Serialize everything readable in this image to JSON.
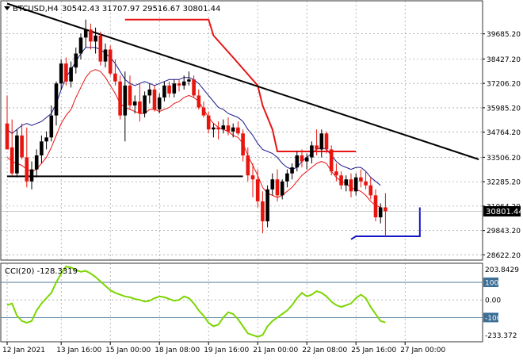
{
  "header": {
    "symbol": "BTCUSD,H4",
    "ohlc": "30542.43 31707.97 29516.67 30801.44"
  },
  "indicator": {
    "label": "CCI(20) -128.3319",
    "scale_top": "203.8429",
    "scale_bottom": "-233.372"
  },
  "price_box": {
    "value": "30801.44",
    "level": 30801.44
  },
  "colors": {
    "bull": "#000000",
    "bear": "#e8140e",
    "upper_band": "#1a1a8c",
    "lower_band": "#e81414",
    "step_red": "#e81414",
    "step_blue": "#1414c8",
    "trendline": "#000000",
    "cci": "#7cd600",
    "grid": "#888888",
    "level_line": "#3c6e96"
  },
  "chart_data": [
    {
      "type": "candlestick",
      "title": "BTCUSD,H4",
      "y_ticks": [
        "39685.20",
        "38427.20",
        "37206.20",
        "35985.20",
        "34764.20",
        "33506.20",
        "32285.20",
        "31064.20",
        "29843.20",
        "28622.20"
      ],
      "y_tick_values": [
        39685.2,
        38427.2,
        37206.2,
        35985.2,
        34764.2,
        33506.2,
        32285.2,
        31064.2,
        29843.2,
        28622.2
      ],
      "ylim": [
        28400,
        41300
      ],
      "x_ticks": [
        "12 Jan 2021",
        "13 Jan 16:00",
        "15 Jan 00:00",
        "18 Jan 08:00",
        "19 Jan 16:00",
        "21 Jan 00:00",
        "22 Jan 08:00",
        "25 Jan 16:00",
        "27 Jan 00:00"
      ],
      "x_tick_index": [
        0,
        11,
        21,
        31,
        41,
        51,
        61,
        71,
        81
      ],
      "candles": [
        {
          "o": 35200,
          "h": 36600,
          "l": 34000,
          "c": 33900
        },
        {
          "o": 34000,
          "h": 35400,
          "l": 32600,
          "c": 32700
        },
        {
          "o": 32700,
          "h": 34900,
          "l": 32500,
          "c": 34600
        },
        {
          "o": 34600,
          "h": 35200,
          "l": 33400,
          "c": 33500
        },
        {
          "o": 33500,
          "h": 35000,
          "l": 32000,
          "c": 32300
        },
        {
          "o": 32300,
          "h": 33300,
          "l": 31900,
          "c": 32900
        },
        {
          "o": 32900,
          "h": 33900,
          "l": 32500,
          "c": 33600
        },
        {
          "o": 33600,
          "h": 34600,
          "l": 33200,
          "c": 34300
        },
        {
          "o": 34300,
          "h": 34800,
          "l": 33900,
          "c": 34500
        },
        {
          "o": 34500,
          "h": 36100,
          "l": 34300,
          "c": 35600
        },
        {
          "o": 35600,
          "h": 37300,
          "l": 35100,
          "c": 37200
        },
        {
          "o": 37200,
          "h": 38400,
          "l": 36900,
          "c": 38200
        },
        {
          "o": 38200,
          "h": 38500,
          "l": 37100,
          "c": 37300
        },
        {
          "o": 37300,
          "h": 38300,
          "l": 37000,
          "c": 38000
        },
        {
          "o": 38000,
          "h": 39000,
          "l": 37700,
          "c": 38700
        },
        {
          "o": 38700,
          "h": 39700,
          "l": 38400,
          "c": 39500
        },
        {
          "o": 39500,
          "h": 40400,
          "l": 39000,
          "c": 39900
        },
        {
          "o": 39900,
          "h": 40200,
          "l": 38900,
          "c": 39300
        },
        {
          "o": 39300,
          "h": 40000,
          "l": 38700,
          "c": 39600
        },
        {
          "o": 39600,
          "h": 39800,
          "l": 38100,
          "c": 38300
        },
        {
          "o": 38300,
          "h": 39200,
          "l": 38000,
          "c": 38900
        },
        {
          "o": 38900,
          "h": 39100,
          "l": 37600,
          "c": 37700
        },
        {
          "o": 37700,
          "h": 38400,
          "l": 37100,
          "c": 37300
        },
        {
          "o": 37300,
          "h": 37600,
          "l": 35400,
          "c": 35600
        },
        {
          "o": 35600,
          "h": 37800,
          "l": 34300,
          "c": 37100
        },
        {
          "o": 37100,
          "h": 37600,
          "l": 35900,
          "c": 36100
        },
        {
          "o": 36100,
          "h": 36600,
          "l": 35700,
          "c": 36300
        },
        {
          "o": 36300,
          "h": 37200,
          "l": 35300,
          "c": 35700
        },
        {
          "o": 35700,
          "h": 36800,
          "l": 35500,
          "c": 36600
        },
        {
          "o": 36600,
          "h": 37200,
          "l": 36200,
          "c": 36900
        },
        {
          "o": 36900,
          "h": 37100,
          "l": 35800,
          "c": 35900
        },
        {
          "o": 35900,
          "h": 36700,
          "l": 35700,
          "c": 36500
        },
        {
          "o": 36500,
          "h": 37300,
          "l": 36300,
          "c": 37100
        },
        {
          "o": 37100,
          "h": 37300,
          "l": 36500,
          "c": 36700
        },
        {
          "o": 36700,
          "h": 37400,
          "l": 36500,
          "c": 37200
        },
        {
          "o": 37200,
          "h": 37400,
          "l": 36800,
          "c": 37100
        },
        {
          "o": 37100,
          "h": 37600,
          "l": 36900,
          "c": 37300
        },
        {
          "o": 37300,
          "h": 37800,
          "l": 37100,
          "c": 37400
        },
        {
          "o": 37400,
          "h": 37600,
          "l": 36500,
          "c": 36600
        },
        {
          "o": 36600,
          "h": 36900,
          "l": 35900,
          "c": 36000
        },
        {
          "o": 36000,
          "h": 36300,
          "l": 35500,
          "c": 35600
        },
        {
          "o": 35600,
          "h": 35800,
          "l": 34700,
          "c": 34900
        },
        {
          "o": 34900,
          "h": 35200,
          "l": 34500,
          "c": 35000
        },
        {
          "o": 35000,
          "h": 35300,
          "l": 34400,
          "c": 34900
        },
        {
          "o": 34900,
          "h": 35400,
          "l": 34700,
          "c": 35100
        },
        {
          "o": 35100,
          "h": 35500,
          "l": 34600,
          "c": 34800
        },
        {
          "o": 34800,
          "h": 35200,
          "l": 34500,
          "c": 35000
        },
        {
          "o": 35000,
          "h": 35300,
          "l": 34600,
          "c": 34700
        },
        {
          "o": 34700,
          "h": 34900,
          "l": 33300,
          "c": 33600
        },
        {
          "o": 33600,
          "h": 34000,
          "l": 32300,
          "c": 32600
        },
        {
          "o": 32600,
          "h": 33200,
          "l": 31500,
          "c": 32400
        },
        {
          "o": 32400,
          "h": 32900,
          "l": 31000,
          "c": 31300
        },
        {
          "o": 31300,
          "h": 31800,
          "l": 29700,
          "c": 30300
        },
        {
          "o": 30300,
          "h": 32100,
          "l": 30000,
          "c": 31900
        },
        {
          "o": 31900,
          "h": 32700,
          "l": 31600,
          "c": 32400
        },
        {
          "o": 32400,
          "h": 32900,
          "l": 31300,
          "c": 31600
        },
        {
          "o": 31600,
          "h": 32400,
          "l": 31400,
          "c": 32300
        },
        {
          "o": 32300,
          "h": 32900,
          "l": 32000,
          "c": 32700
        },
        {
          "o": 32700,
          "h": 33200,
          "l": 32400,
          "c": 33000
        },
        {
          "o": 33000,
          "h": 33800,
          "l": 32800,
          "c": 33600
        },
        {
          "o": 33600,
          "h": 33900,
          "l": 33000,
          "c": 33300
        },
        {
          "o": 33300,
          "h": 33700,
          "l": 32900,
          "c": 33500
        },
        {
          "o": 33500,
          "h": 34300,
          "l": 33200,
          "c": 34100
        },
        {
          "o": 34100,
          "h": 34900,
          "l": 33600,
          "c": 33900
        },
        {
          "o": 33900,
          "h": 34900,
          "l": 33500,
          "c": 34700
        },
        {
          "o": 34700,
          "h": 34800,
          "l": 33700,
          "c": 33900
        },
        {
          "o": 33900,
          "h": 34100,
          "l": 32600,
          "c": 32800
        },
        {
          "o": 32800,
          "h": 33200,
          "l": 32300,
          "c": 32600
        },
        {
          "o": 32600,
          "h": 32800,
          "l": 31900,
          "c": 32100
        },
        {
          "o": 32100,
          "h": 32600,
          "l": 31800,
          "c": 32400
        },
        {
          "o": 32400,
          "h": 32700,
          "l": 31500,
          "c": 31800
        },
        {
          "o": 31800,
          "h": 32700,
          "l": 31600,
          "c": 32500
        },
        {
          "o": 32500,
          "h": 32900,
          "l": 32000,
          "c": 32300
        },
        {
          "o": 32300,
          "h": 32800,
          "l": 31900,
          "c": 32100
        },
        {
          "o": 32100,
          "h": 32500,
          "l": 31400,
          "c": 31600
        },
        {
          "o": 31600,
          "h": 31900,
          "l": 30300,
          "c": 30500
        },
        {
          "o": 30500,
          "h": 31200,
          "l": 30200,
          "c": 31000
        },
        {
          "o": 31000,
          "h": 31707.97,
          "l": 29516.67,
          "c": 30801.44
        }
      ],
      "overlays": {
        "upper_band": [
          34900,
          34700,
          34900,
          35100,
          35200,
          35100,
          35200,
          35300,
          35500,
          35700,
          36200,
          36900,
          37500,
          37900,
          38300,
          38700,
          39000,
          39000,
          39000,
          38900,
          38700,
          38500,
          38200,
          37800,
          37400,
          37200,
          37100,
          37200,
          37300,
          37200,
          37100,
          37200,
          37300,
          37400,
          37400,
          37400,
          37500,
          37500,
          37400,
          37200,
          36900,
          36600,
          36300,
          36000,
          35900,
          35700,
          35600,
          35500,
          35300,
          34900,
          34600,
          34200,
          33900,
          33800,
          33700,
          33500,
          33200,
          33000,
          32900,
          33000,
          33300,
          33500,
          33700,
          33900,
          34000,
          33900,
          33600,
          33300,
          33100,
          33000,
          32900,
          33000,
          33000,
          32800,
          32500,
          32300,
          32100
        ],
        "lower_band": [
          33500,
          33300,
          33200,
          33100,
          32900,
          32800,
          32900,
          33200,
          33500,
          34000,
          34600,
          35200,
          35600,
          35900,
          36500,
          37000,
          37500,
          37800,
          37900,
          37800,
          37500,
          37100,
          36700,
          36200,
          36000,
          35900,
          35800,
          35700,
          35700,
          35900,
          35900,
          35800,
          35900,
          36000,
          36200,
          36300,
          36500,
          36600,
          36500,
          36300,
          35900,
          35500,
          35200,
          35000,
          34900,
          34800,
          34600,
          34500,
          34200,
          33600,
          33100,
          32600,
          32000,
          31700,
          31600,
          31500,
          31600,
          31800,
          32000,
          32300,
          32600,
          32800,
          33000,
          33200,
          33300,
          33200,
          32800,
          32500,
          32300,
          32200,
          32000,
          31900,
          31800,
          31600,
          31300,
          31100,
          31000
        ],
        "step_red": [
          [
            24,
            40400
          ],
          [
            24,
            40400
          ],
          [
            41,
            40400
          ],
          [
            42,
            39600
          ],
          [
            46,
            38500
          ],
          [
            51,
            37100
          ],
          [
            52,
            36100
          ],
          [
            54,
            34900
          ],
          [
            55,
            33800
          ],
          [
            71,
            33800
          ]
        ],
        "step_blue": [
          [
            70,
            29400
          ],
          [
            71,
            29550
          ],
          [
            84,
            29550
          ],
          [
            84,
            31000
          ]
        ],
        "horizontal_support": [
          [
            0,
            32550
          ],
          [
            48,
            32550
          ]
        ],
        "trendline": [
          [
            0,
            41200
          ],
          [
            96,
            33400
          ]
        ]
      }
    },
    {
      "type": "line",
      "title": "CCI(20) -128.3319",
      "y_ticks": [
        "100",
        "0.00",
        "-100"
      ],
      "y_tick_values": [
        100,
        0,
        -100
      ],
      "ylim": [
        -233.372,
        203.8429
      ],
      "series": [
        {
          "name": "CCI(20)",
          "values": [
            -30,
            -20,
            -90,
            -120,
            -130,
            -120,
            -60,
            -20,
            10,
            40,
            100,
            150,
            190,
            185,
            170,
            160,
            165,
            150,
            130,
            105,
            80,
            55,
            40,
            30,
            20,
            15,
            5,
            0,
            -10,
            -5,
            10,
            20,
            15,
            5,
            -5,
            0,
            20,
            10,
            -20,
            -60,
            -90,
            -130,
            -150,
            -140,
            -100,
            -70,
            -80,
            -110,
            -150,
            -190,
            -200,
            -210,
            -200,
            -150,
            -120,
            -100,
            -80,
            -60,
            -30,
            10,
            40,
            20,
            30,
            50,
            40,
            20,
            -10,
            -30,
            -40,
            -30,
            -20,
            10,
            30,
            10,
            -40,
            -80,
            -120,
            -128.33
          ]
        }
      ]
    }
  ]
}
